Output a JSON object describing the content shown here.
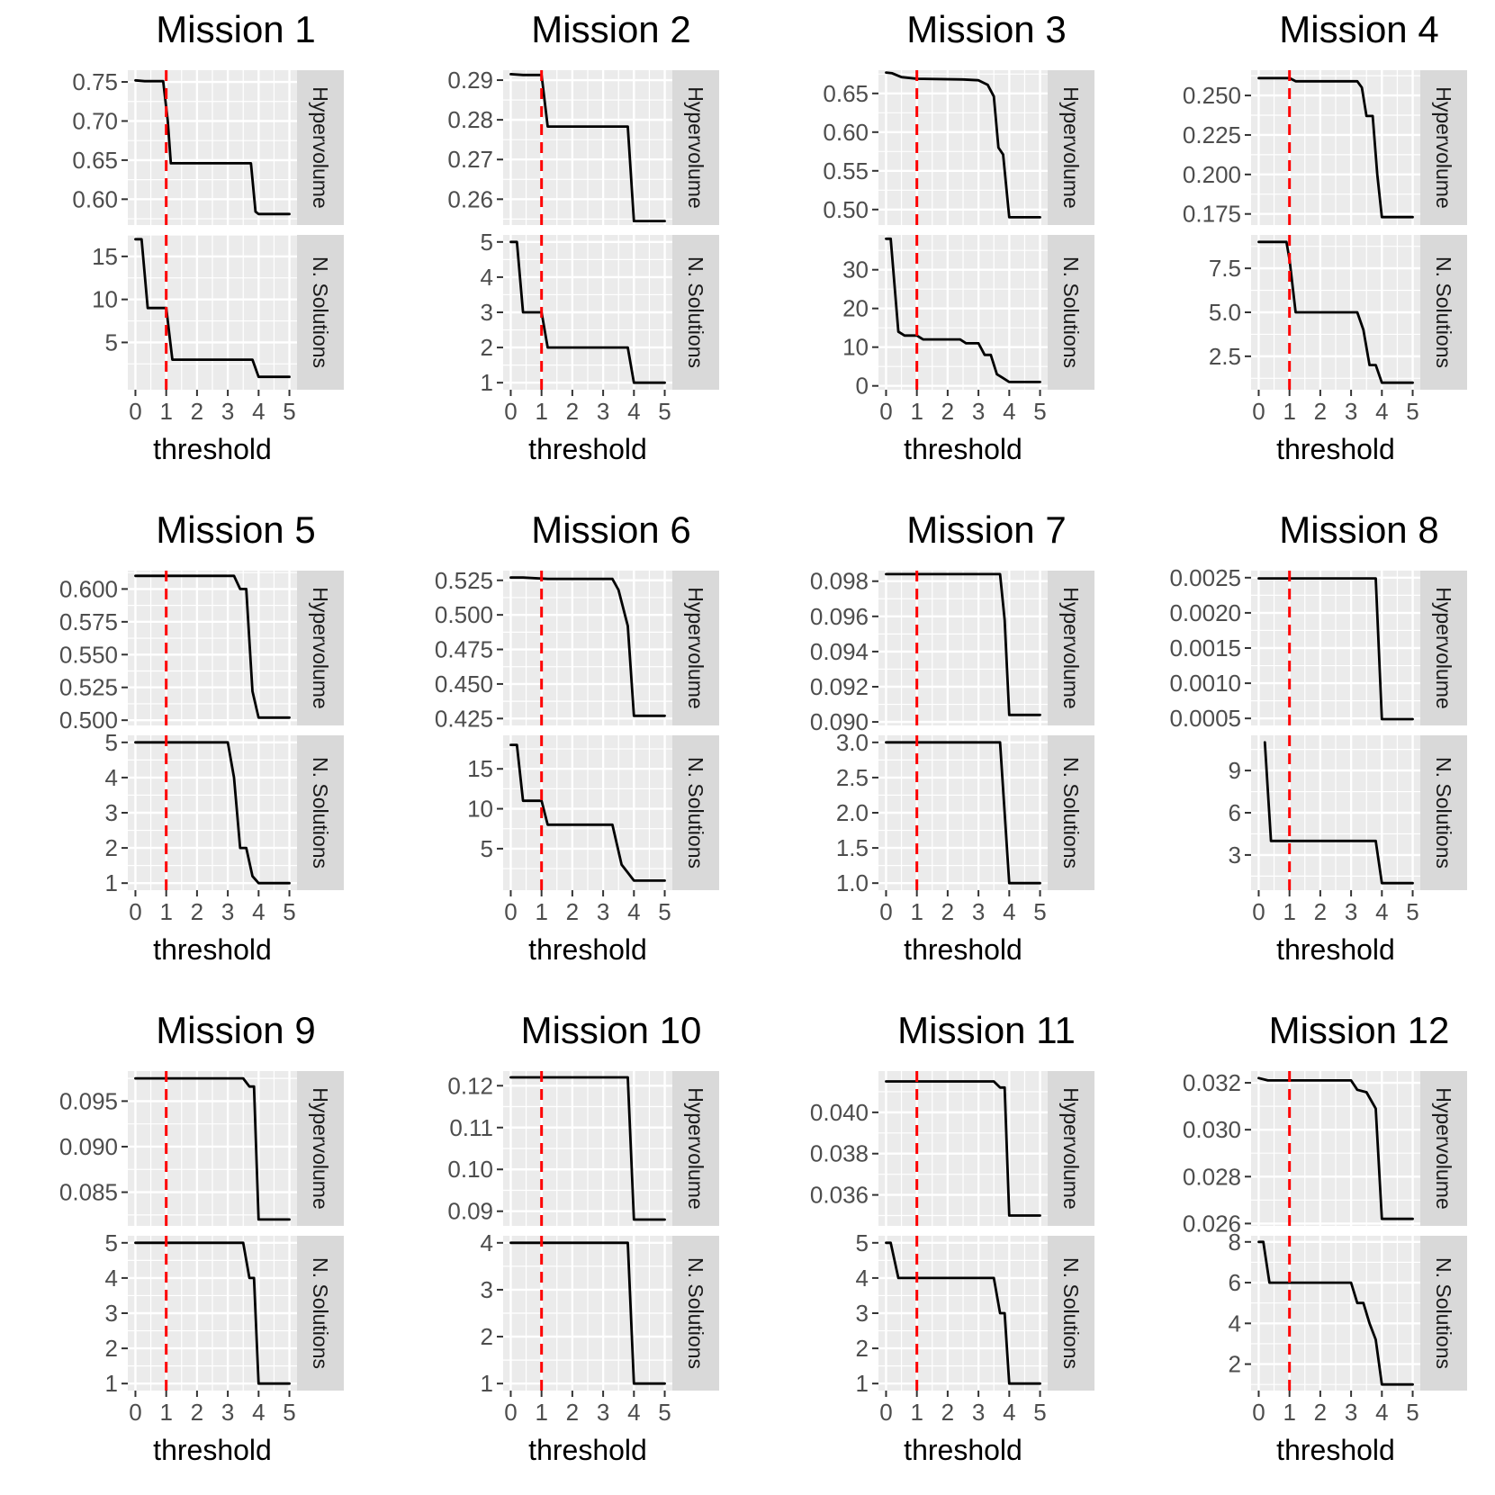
{
  "figure": {
    "x_axis_label": "threshold",
    "facet_labels": [
      "Hypervolume",
      "N. Solutions"
    ],
    "x_ticks": [
      0,
      1,
      2,
      3,
      4,
      5
    ],
    "x_range": [
      0,
      5
    ],
    "reference_line": {
      "x": 1,
      "color": "#ff0000",
      "style": "dashed"
    },
    "colors": {
      "panel_bg": "#ebebeb",
      "strip_bg": "#d9d9d9",
      "grid": "#ffffff",
      "line": "#000000",
      "tick_text": "#4d4d4d"
    }
  },
  "chart_data": [
    {
      "type": "line",
      "title": "Mission  1",
      "xlabel": "threshold",
      "series": [
        {
          "name": "Hypervolume",
          "ylim": [
            0.567,
            0.765
          ],
          "y_ticks": [
            0.6,
            0.65,
            0.7,
            0.75
          ],
          "y_tick_labels": [
            "0.60",
            "0.65",
            "0.70",
            "0.75"
          ],
          "x": [
            0,
            0.3,
            0.9,
            1.05,
            1.15,
            1.2,
            3.75,
            3.9,
            4.0,
            5.0
          ],
          "y": [
            0.752,
            0.751,
            0.751,
            0.7,
            0.646,
            0.646,
            0.646,
            0.584,
            0.581,
            0.581
          ]
        },
        {
          "name": "N. Solutions",
          "ylim": [
            -0.5,
            17.5
          ],
          "y_ticks": [
            5,
            10,
            15
          ],
          "y_tick_labels": [
            "5",
            "10",
            "15"
          ],
          "x": [
            0,
            0.2,
            0.4,
            1.0,
            1.1,
            1.2,
            3.8,
            4.0,
            5.0
          ],
          "y": [
            17,
            17,
            9,
            9,
            6,
            3,
            3,
            1,
            1
          ]
        }
      ]
    },
    {
      "type": "line",
      "title": "Mission  2",
      "xlabel": "threshold",
      "series": [
        {
          "name": "Hypervolume",
          "ylim": [
            0.2535,
            0.2925
          ],
          "y_ticks": [
            0.26,
            0.27,
            0.28,
            0.29
          ],
          "y_tick_labels": [
            "0.26",
            "0.27",
            "0.28",
            "0.29"
          ],
          "x": [
            0,
            0.4,
            1.0,
            1.2,
            3.8,
            4.0,
            5.0
          ],
          "y": [
            0.2915,
            0.2913,
            0.2913,
            0.2783,
            0.2783,
            0.2545,
            0.2545
          ]
        },
        {
          "name": "N. Solutions",
          "ylim": [
            0.8,
            5.2
          ],
          "y_ticks": [
            1,
            2,
            3,
            4,
            5
          ],
          "y_tick_labels": [
            "1",
            "2",
            "3",
            "4",
            "5"
          ],
          "x": [
            0,
            0.2,
            0.4,
            1.0,
            1.2,
            3.8,
            4.0,
            5.0
          ],
          "y": [
            5,
            5,
            3,
            3,
            2,
            2,
            1,
            1
          ]
        }
      ]
    },
    {
      "type": "line",
      "title": "Mission  3",
      "xlabel": "threshold",
      "series": [
        {
          "name": "Hypervolume",
          "ylim": [
            0.48,
            0.68
          ],
          "y_ticks": [
            0.5,
            0.55,
            0.6,
            0.65
          ],
          "y_tick_labels": [
            "0.50",
            "0.55",
            "0.60",
            "0.65"
          ],
          "x": [
            0,
            0.2,
            0.5,
            1.0,
            2.5,
            3.0,
            3.3,
            3.5,
            3.65,
            3.8,
            4.0,
            5.0
          ],
          "y": [
            0.677,
            0.676,
            0.671,
            0.669,
            0.668,
            0.667,
            0.661,
            0.646,
            0.58,
            0.571,
            0.49,
            0.49
          ]
        },
        {
          "name": "N. Solutions",
          "ylim": [
            -1,
            39
          ],
          "y_ticks": [
            0,
            10,
            20,
            30
          ],
          "y_tick_labels": [
            "0",
            "10",
            "20",
            "30"
          ],
          "x": [
            0,
            0.15,
            0.4,
            0.6,
            1.0,
            1.2,
            2.4,
            2.6,
            3.0,
            3.2,
            3.4,
            3.6,
            3.8,
            4.0,
            5.0
          ],
          "y": [
            38,
            38,
            14,
            13,
            13,
            12,
            12,
            11,
            11,
            8,
            8,
            3,
            2,
            1,
            1
          ]
        }
      ]
    },
    {
      "type": "line",
      "title": "Mission  4",
      "xlabel": "threshold",
      "series": [
        {
          "name": "Hypervolume",
          "ylim": [
            0.168,
            0.266
          ],
          "y_ticks": [
            0.175,
            0.2,
            0.225,
            0.25
          ],
          "y_tick_labels": [
            "0.175",
            "0.200",
            "0.225",
            "0.250"
          ],
          "x": [
            0,
            1.0,
            1.2,
            3.2,
            3.35,
            3.5,
            3.7,
            3.85,
            4.0,
            5.0
          ],
          "y": [
            0.261,
            0.261,
            0.259,
            0.259,
            0.255,
            0.237,
            0.237,
            0.2,
            0.173,
            0.173
          ]
        },
        {
          "name": "N. Solutions",
          "ylim": [
            0.6,
            9.4
          ],
          "y_ticks": [
            2.5,
            5.0,
            7.5
          ],
          "y_tick_labels": [
            "2.5",
            "5.0",
            "7.5"
          ],
          "x": [
            0,
            0.9,
            1.0,
            1.2,
            3.2,
            3.4,
            3.6,
            3.8,
            4.0,
            5.0
          ],
          "y": [
            9,
            9,
            8,
            5,
            5,
            4,
            2,
            2,
            1,
            1
          ]
        }
      ]
    },
    {
      "type": "line",
      "title": "Mission  5",
      "xlabel": "threshold",
      "series": [
        {
          "name": "Hypervolume",
          "ylim": [
            0.496,
            0.614
          ],
          "y_ticks": [
            0.5,
            0.525,
            0.55,
            0.575,
            0.6
          ],
          "y_tick_labels": [
            "0.500",
            "0.525",
            "0.550",
            "0.575",
            "0.600"
          ],
          "x": [
            0,
            1.0,
            3.2,
            3.4,
            3.6,
            3.8,
            4.0,
            5.0
          ],
          "y": [
            0.61,
            0.61,
            0.61,
            0.6,
            0.6,
            0.522,
            0.502,
            0.502
          ]
        },
        {
          "name": "N. Solutions",
          "ylim": [
            0.8,
            5.2
          ],
          "y_ticks": [
            1,
            2,
            3,
            4,
            5
          ],
          "y_tick_labels": [
            "1",
            "2",
            "3",
            "4",
            "5"
          ],
          "x": [
            0,
            1.0,
            3.0,
            3.2,
            3.4,
            3.6,
            3.8,
            4.0,
            5.0
          ],
          "y": [
            5,
            5,
            5,
            4,
            2,
            2,
            1.2,
            1,
            1
          ]
        }
      ]
    },
    {
      "type": "line",
      "title": "Mission  6",
      "xlabel": "threshold",
      "series": [
        {
          "name": "Hypervolume",
          "ylim": [
            0.42,
            0.532
          ],
          "y_ticks": [
            0.425,
            0.45,
            0.475,
            0.5,
            0.525
          ],
          "y_tick_labels": [
            "0.425",
            "0.450",
            "0.475",
            "0.500",
            "0.525"
          ],
          "x": [
            0,
            0.4,
            1.2,
            3.3,
            3.5,
            3.8,
            4.0,
            5.0
          ],
          "y": [
            0.527,
            0.527,
            0.526,
            0.526,
            0.518,
            0.492,
            0.427,
            0.427
          ]
        },
        {
          "name": "N. Solutions",
          "ylim": [
            -0.2,
            19.2
          ],
          "y_ticks": [
            5,
            10,
            15
          ],
          "y_tick_labels": [
            "5",
            "10",
            "15"
          ],
          "x": [
            0,
            0.2,
            0.4,
            1.0,
            1.2,
            3.3,
            3.6,
            3.8,
            4.0,
            5.0
          ],
          "y": [
            18,
            18,
            11,
            11,
            8,
            8,
            3,
            2,
            1,
            1
          ]
        }
      ]
    },
    {
      "type": "line",
      "title": "Mission  7",
      "xlabel": "threshold",
      "series": [
        {
          "name": "Hypervolume",
          "ylim": [
            0.0898,
            0.0986
          ],
          "y_ticks": [
            0.09,
            0.092,
            0.094,
            0.096,
            0.098
          ],
          "y_tick_labels": [
            "0.090",
            "0.092",
            "0.094",
            "0.096",
            "0.098"
          ],
          "x": [
            0,
            1.0,
            3.7,
            3.85,
            4.0,
            5.0
          ],
          "y": [
            0.0984,
            0.0984,
            0.0984,
            0.0958,
            0.0904,
            0.0904
          ]
        },
        {
          "name": "N. Solutions",
          "ylim": [
            0.9,
            3.1
          ],
          "y_ticks": [
            1.0,
            1.5,
            2.0,
            2.5,
            3.0
          ],
          "y_tick_labels": [
            "1.0",
            "1.5",
            "2.0",
            "2.5",
            "3.0"
          ],
          "x": [
            0,
            1.0,
            3.7,
            4.0,
            5.0
          ],
          "y": [
            3,
            3,
            3,
            1,
            1
          ]
        }
      ]
    },
    {
      "type": "line",
      "title": "Mission  8",
      "xlabel": "threshold",
      "series": [
        {
          "name": "Hypervolume",
          "ylim": [
            0.0004,
            0.0026
          ],
          "y_ticks": [
            0.0005,
            0.001,
            0.0015,
            0.002,
            0.0025
          ],
          "y_tick_labels": [
            "0.0005",
            "0.0010",
            "0.0015",
            "0.0020",
            "0.0025"
          ],
          "x": [
            0,
            1.0,
            3.8,
            4.0,
            5.0
          ],
          "y": [
            0.00249,
            0.00249,
            0.00249,
            0.00049,
            0.00049
          ]
        },
        {
          "name": "N. Solutions",
          "ylim": [
            0.5,
            11.5
          ],
          "y_ticks": [
            3,
            6,
            9
          ],
          "y_tick_labels": [
            "3",
            "6",
            "9"
          ],
          "x": [
            0.2,
            0.4,
            1.0,
            3.8,
            4.0,
            5.0
          ],
          "y": [
            11,
            4,
            4,
            4,
            1,
            1
          ]
        }
      ]
    },
    {
      "type": "line",
      "title": "Mission  9",
      "xlabel": "threshold",
      "series": [
        {
          "name": "Hypervolume",
          "ylim": [
            0.0813,
            0.0983
          ],
          "y_ticks": [
            0.085,
            0.09,
            0.095
          ],
          "y_tick_labels": [
            "0.085",
            "0.090",
            "0.095"
          ],
          "x": [
            0,
            1.0,
            3.5,
            3.7,
            3.85,
            4.0,
            5.0
          ],
          "y": [
            0.0975,
            0.0975,
            0.0975,
            0.0966,
            0.0966,
            0.082,
            0.082
          ]
        },
        {
          "name": "N. Solutions",
          "ylim": [
            0.8,
            5.2
          ],
          "y_ticks": [
            1,
            2,
            3,
            4,
            5
          ],
          "y_tick_labels": [
            "1",
            "2",
            "3",
            "4",
            "5"
          ],
          "x": [
            0,
            1.0,
            3.5,
            3.7,
            3.85,
            4.0,
            5.0
          ],
          "y": [
            5,
            5,
            5,
            4,
            4,
            1,
            1
          ]
        }
      ]
    },
    {
      "type": "line",
      "title": "Mission  10",
      "xlabel": "threshold",
      "series": [
        {
          "name": "Hypervolume",
          "ylim": [
            0.0865,
            0.1235
          ],
          "y_ticks": [
            0.09,
            0.1,
            0.11,
            0.12
          ],
          "y_tick_labels": [
            "0.09",
            "0.10",
            "0.11",
            "0.12"
          ],
          "x": [
            0,
            1.0,
            3.8,
            4.0,
            5.0
          ],
          "y": [
            0.122,
            0.122,
            0.122,
            0.088,
            0.088
          ]
        },
        {
          "name": "N. Solutions",
          "ylim": [
            0.85,
            4.15
          ],
          "y_ticks": [
            1,
            2,
            3,
            4
          ],
          "y_tick_labels": [
            "1",
            "2",
            "3",
            "4"
          ],
          "x": [
            0,
            1.0,
            3.8,
            4.0,
            5.0
          ],
          "y": [
            4,
            4,
            4,
            1,
            1
          ]
        }
      ]
    },
    {
      "type": "line",
      "title": "Mission  11",
      "xlabel": "threshold",
      "series": [
        {
          "name": "Hypervolume",
          "ylim": [
            0.0345,
            0.042
          ],
          "y_ticks": [
            0.036,
            0.038,
            0.04
          ],
          "y_tick_labels": [
            "0.036",
            "0.038",
            "0.040"
          ],
          "x": [
            0,
            1.0,
            3.5,
            3.7,
            3.85,
            4.0,
            5.0
          ],
          "y": [
            0.0415,
            0.0415,
            0.0415,
            0.0412,
            0.0412,
            0.035,
            0.035
          ]
        },
        {
          "name": "N. Solutions",
          "ylim": [
            0.8,
            5.2
          ],
          "y_ticks": [
            1,
            2,
            3,
            4,
            5
          ],
          "y_tick_labels": [
            "1",
            "2",
            "3",
            "4",
            "5"
          ],
          "x": [
            0,
            0.15,
            0.4,
            1.0,
            3.5,
            3.7,
            3.85,
            4.0,
            5.0
          ],
          "y": [
            5,
            5,
            4,
            4,
            4,
            3,
            3,
            1,
            1
          ]
        }
      ]
    },
    {
      "type": "line",
      "title": "Mission  12",
      "xlabel": "threshold",
      "series": [
        {
          "name": "Hypervolume",
          "ylim": [
            0.0259,
            0.0325
          ],
          "y_ticks": [
            0.026,
            0.028,
            0.03,
            0.032
          ],
          "y_tick_labels": [
            "0.026",
            "0.028",
            "0.030",
            "0.032"
          ],
          "x": [
            0,
            0.3,
            1.0,
            3.0,
            3.2,
            3.5,
            3.8,
            4.0,
            5.0
          ],
          "y": [
            0.0322,
            0.0321,
            0.0321,
            0.0321,
            0.0317,
            0.0316,
            0.0309,
            0.0262,
            0.0262
          ]
        },
        {
          "name": "N. Solutions",
          "ylim": [
            0.7,
            8.3
          ],
          "y_ticks": [
            2,
            4,
            6,
            8
          ],
          "y_tick_labels": [
            "2",
            "4",
            "6",
            "8"
          ],
          "x": [
            0,
            0.15,
            0.35,
            1.0,
            3.0,
            3.2,
            3.4,
            3.6,
            3.8,
            4.0,
            5.0
          ],
          "y": [
            8,
            8,
            6,
            6,
            6,
            5,
            5,
            4,
            3.2,
            1,
            1
          ]
        }
      ]
    }
  ]
}
